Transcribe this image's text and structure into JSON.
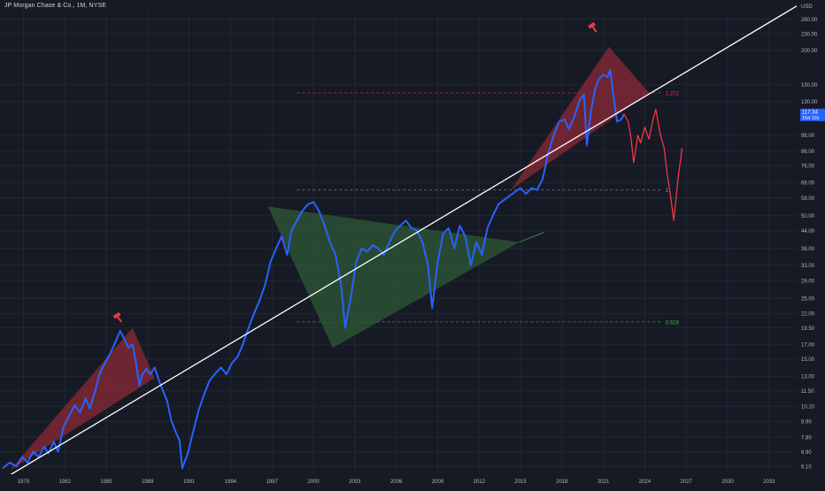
{
  "header": {
    "symbol_title": "JP Morgan Chase & Co., 1M, NYSE"
  },
  "colors": {
    "background": "#161a25",
    "grid": "#232733",
    "price_line": "#2962ff",
    "projection_line": "#f23645",
    "trendline": "#ffffff",
    "red_fill": "#8b2a36",
    "green_fill": "#2f5a35",
    "badge": "#2962ff",
    "axis_text": "#b2b5be"
  },
  "chart_data": {
    "type": "line",
    "title": "JP Morgan Chase & Co., 1M, NYSE",
    "currency": "USD",
    "y_scale": "log",
    "ylim": [
      5.8,
      275
    ],
    "xlim": [
      1977.8,
      2035.5
    ],
    "y_ticks": [
      "260.00",
      "230.00",
      "200.00",
      "150.00",
      "130.00",
      "98.00",
      "86.00",
      "76.00",
      "66.00",
      "58.00",
      "50.00",
      "44.00",
      "38.00",
      "33.00",
      "29.00",
      "25.00",
      "22.00",
      "19.50",
      "17.00",
      "15.00",
      "13.00",
      "11.50",
      "10.10",
      "8.90",
      "7.80",
      "6.90",
      "6.10"
    ],
    "x_ticks": [
      "1979",
      "1982",
      "1985",
      "1988",
      "1991",
      "1994",
      "1997",
      "2000",
      "2003",
      "2006",
      "2009",
      "2012",
      "2015",
      "2018",
      "2021",
      "2024",
      "2027",
      "2030",
      "2033"
    ],
    "last_price_label": "117.34",
    "countdown_label": "15d 11h",
    "fib_levels": [
      {
        "label": "1.272",
        "price": 140,
        "color": "#f23645"
      },
      {
        "label": "1",
        "price": 62,
        "color": "#9598a1"
      },
      {
        "label": "0.618",
        "price": 20.5,
        "color": "#4caf50"
      }
    ],
    "series": [
      {
        "kind": "price",
        "x": [
          1978.0,
          1978.5,
          1979.0,
          1979.4,
          1979.8,
          1980.2,
          1980.6,
          1981.0,
          1981.3,
          1981.7,
          1982.0,
          1982.4,
          1982.8,
          1983.2,
          1983.6,
          1984.0,
          1984.3,
          1984.7,
          1985.0,
          1985.4,
          1985.8,
          1986.2,
          1986.5,
          1986.8,
          1987.1,
          1987.4,
          1987.7,
          1987.9,
          1988.1,
          1988.4,
          1988.7,
          1989.0,
          1989.3,
          1989.6,
          1989.9,
          1990.2,
          1990.5,
          1990.8,
          1991.0,
          1991.4,
          1991.8,
          1992.2,
          1992.6,
          1993.0,
          1993.4,
          1993.8,
          1994.2,
          1994.6,
          1995.0,
          1995.4,
          1995.8,
          1996.2,
          1996.6,
          1997.0,
          1997.4,
          1997.8,
          1998.2,
          1998.6,
          1998.9,
          1999.3,
          1999.7,
          2000.1,
          2000.5,
          2000.9,
          2001.3,
          2001.7,
          2002.1,
          2002.5,
          2002.8,
          2003.2,
          2003.6,
          2004.0,
          2004.4,
          2004.8,
          2005.2,
          2005.6,
          2006.0,
          2006.4,
          2006.8,
          2007.2,
          2007.6,
          2008.0,
          2008.4,
          2008.8,
          2009.1,
          2009.5,
          2009.9,
          2010.3,
          2010.7,
          2011.1,
          2011.5,
          2011.9,
          2012.3,
          2012.7,
          2013.1,
          2013.5,
          2013.9,
          2014.3,
          2014.7,
          2015.1,
          2015.5,
          2015.9,
          2016.3,
          2016.7,
          2017.1,
          2017.5,
          2017.9,
          2018.3,
          2018.7,
          2019.0,
          2019.4,
          2019.8,
          2020.1,
          2020.3,
          2020.6,
          2020.9,
          2021.2,
          2021.5,
          2021.8,
          2022.0,
          2022.2,
          2022.5,
          2022.8,
          2023.0
        ],
        "values": [
          6.0,
          6.3,
          6.1,
          6.6,
          6.3,
          6.9,
          6.6,
          7.2,
          6.8,
          7.5,
          6.9,
          8.5,
          9.3,
          10.2,
          9.6,
          10.8,
          9.9,
          11.5,
          13.2,
          14.5,
          15.8,
          17.5,
          19.0,
          17.8,
          16.5,
          17.0,
          14.0,
          12.0,
          13.2,
          13.8,
          13.2,
          14.0,
          12.6,
          11.5,
          10.6,
          9.0,
          8.2,
          7.6,
          6.0,
          6.8,
          8.2,
          9.8,
          11.2,
          12.6,
          13.3,
          14.0,
          13.2,
          14.5,
          15.3,
          17.0,
          19.5,
          22.0,
          24.5,
          28.0,
          34.0,
          38.0,
          42.0,
          36.0,
          44.0,
          48.0,
          52.0,
          55.0,
          56.0,
          52.0,
          46.0,
          40.0,
          36.0,
          28.0,
          19.5,
          25.0,
          34.0,
          38.0,
          37.0,
          39.0,
          38.0,
          36.0,
          40.0,
          44.0,
          46.0,
          48.0,
          45.0,
          44.0,
          40.0,
          33.0,
          23.0,
          34.0,
          43.0,
          45.0,
          38.0,
          46.0,
          42.0,
          33.0,
          40.0,
          36.0,
          45.0,
          50.0,
          55.0,
          57.0,
          59.0,
          61.0,
          63.0,
          60.0,
          63.0,
          62.0,
          68.0,
          84.0,
          98.0,
          110.0,
          112.0,
          103.0,
          115.0,
          132.0,
          138.0,
          90.0,
          120.0,
          145.0,
          158.0,
          163.0,
          160.0,
          170.0,
          140.0,
          110.0,
          112.0,
          117.3
        ]
      },
      {
        "kind": "projection",
        "x": [
          2023.0,
          2023.3,
          2023.5,
          2023.7,
          2024.0,
          2024.2,
          2024.5,
          2024.8,
          2025.1,
          2025.3,
          2025.6,
          2025.9,
          2026.1,
          2026.3,
          2026.6,
          2026.9,
          2027.2
        ],
        "values": [
          117.3,
          110.0,
          96.0,
          78.0,
          98.0,
          92.0,
          105.0,
          95.0,
          112.0,
          122.0,
          100.0,
          88.0,
          72.0,
          62.0,
          48.0,
          68.0,
          88.0
        ]
      }
    ],
    "trendline": {
      "x": [
        1977.8,
        2035.5
      ],
      "values": [
        5.4,
        290
      ]
    },
    "triangles": [
      {
        "fill": "red",
        "points": [
          [
            1978.5,
            5.9
          ],
          [
            1987.4,
            19.5
          ],
          [
            1989.0,
            12.8
          ]
        ]
      },
      {
        "fill": "green",
        "points": [
          [
            1997.2,
            54.0
          ],
          [
            2001.9,
            16.5
          ],
          [
            2015.4,
            40.0
          ]
        ]
      },
      {
        "fill": "red",
        "points": [
          [
            2014.8,
            62.0
          ],
          [
            2021.9,
            206.0
          ],
          [
            2024.8,
            140.0
          ]
        ]
      }
    ],
    "green_extension": {
      "x": [
        2015.4,
        2017.2
      ],
      "values": [
        40.0,
        43.5
      ]
    },
    "markers": [
      {
        "name": "hammer",
        "x": 1986.3,
        "y": 21.5
      },
      {
        "name": "hammer",
        "x": 2020.7,
        "y": 245.0
      }
    ]
  }
}
